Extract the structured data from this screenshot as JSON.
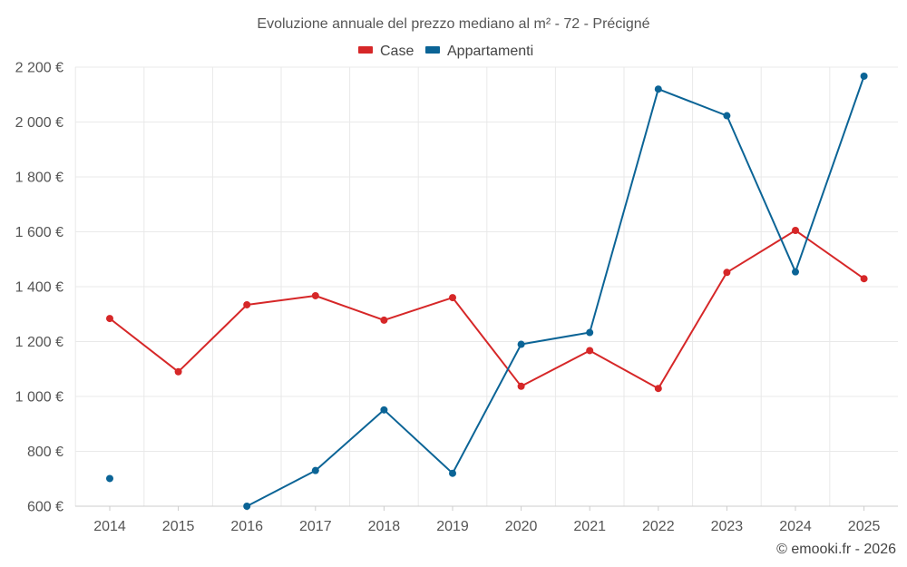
{
  "chart_data": {
    "type": "line",
    "title": "Evoluzione annuale del prezzo mediano al m² - 72 - Précigné",
    "categories": [
      "2014",
      "2015",
      "2016",
      "2017",
      "2018",
      "2019",
      "2020",
      "2021",
      "2022",
      "2023",
      "2024",
      "2025"
    ],
    "series": [
      {
        "name": "Case",
        "color": "#d62728",
        "values": [
          1284,
          1090,
          1334,
          1367,
          1278,
          1360,
          1037,
          1167,
          1029,
          1452,
          1605,
          1429
        ]
      },
      {
        "name": "Appartamenti",
        "color": "#0b6496",
        "values": [
          701,
          null,
          600,
          730,
          951,
          720,
          1190,
          1233,
          2120,
          2023,
          1454,
          2167
        ]
      }
    ],
    "ylim": [
      600,
      2200
    ],
    "yticks": [
      600,
      800,
      1000,
      1200,
      1400,
      1600,
      1800,
      2000,
      2200
    ],
    "ytick_labels": [
      "600 €",
      "800 €",
      "1 000 €",
      "1 200 €",
      "1 400 €",
      "1 600 €",
      "1 800 €",
      "2 000 €",
      "2 200 €"
    ],
    "xlabel": "",
    "ylabel": "",
    "grid": true,
    "legend_position": "top-center"
  },
  "credit": "© emooki.fr - 2026"
}
